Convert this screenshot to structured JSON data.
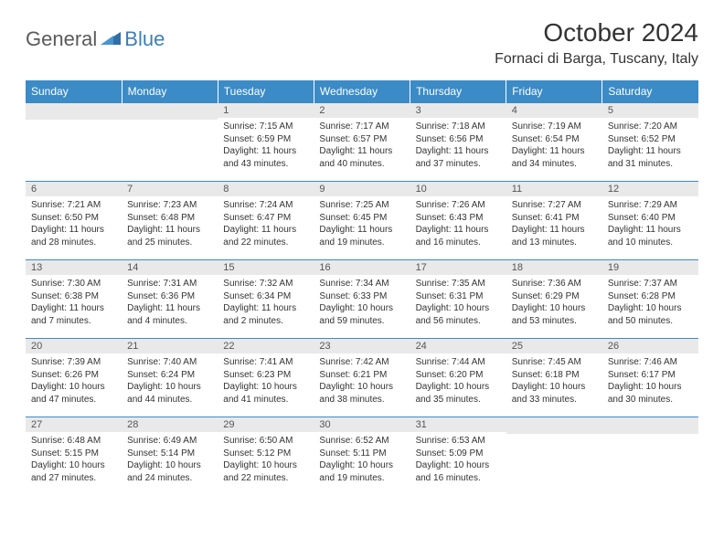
{
  "logo": {
    "part1": "General",
    "part2": "Blue"
  },
  "title": "October 2024",
  "location": "Fornaci di Barga, Tuscany, Italy",
  "colors": {
    "header_bg": "#3b8bc6",
    "header_text": "#ffffff",
    "daynum_bg": "#e9e9e9",
    "daynum_text": "#555555",
    "rule": "#3b8bc6",
    "logo_gray": "#5a5a5a",
    "logo_blue": "#3b7fb6"
  },
  "weekdays": [
    "Sunday",
    "Monday",
    "Tuesday",
    "Wednesday",
    "Thursday",
    "Friday",
    "Saturday"
  ],
  "weeks": [
    [
      null,
      null,
      {
        "n": "1",
        "sr": "Sunrise: 7:15 AM",
        "ss": "Sunset: 6:59 PM",
        "d1": "Daylight: 11 hours",
        "d2": "and 43 minutes."
      },
      {
        "n": "2",
        "sr": "Sunrise: 7:17 AM",
        "ss": "Sunset: 6:57 PM",
        "d1": "Daylight: 11 hours",
        "d2": "and 40 minutes."
      },
      {
        "n": "3",
        "sr": "Sunrise: 7:18 AM",
        "ss": "Sunset: 6:56 PM",
        "d1": "Daylight: 11 hours",
        "d2": "and 37 minutes."
      },
      {
        "n": "4",
        "sr": "Sunrise: 7:19 AM",
        "ss": "Sunset: 6:54 PM",
        "d1": "Daylight: 11 hours",
        "d2": "and 34 minutes."
      },
      {
        "n": "5",
        "sr": "Sunrise: 7:20 AM",
        "ss": "Sunset: 6:52 PM",
        "d1": "Daylight: 11 hours",
        "d2": "and 31 minutes."
      }
    ],
    [
      {
        "n": "6",
        "sr": "Sunrise: 7:21 AM",
        "ss": "Sunset: 6:50 PM",
        "d1": "Daylight: 11 hours",
        "d2": "and 28 minutes."
      },
      {
        "n": "7",
        "sr": "Sunrise: 7:23 AM",
        "ss": "Sunset: 6:48 PM",
        "d1": "Daylight: 11 hours",
        "d2": "and 25 minutes."
      },
      {
        "n": "8",
        "sr": "Sunrise: 7:24 AM",
        "ss": "Sunset: 6:47 PM",
        "d1": "Daylight: 11 hours",
        "d2": "and 22 minutes."
      },
      {
        "n": "9",
        "sr": "Sunrise: 7:25 AM",
        "ss": "Sunset: 6:45 PM",
        "d1": "Daylight: 11 hours",
        "d2": "and 19 minutes."
      },
      {
        "n": "10",
        "sr": "Sunrise: 7:26 AM",
        "ss": "Sunset: 6:43 PM",
        "d1": "Daylight: 11 hours",
        "d2": "and 16 minutes."
      },
      {
        "n": "11",
        "sr": "Sunrise: 7:27 AM",
        "ss": "Sunset: 6:41 PM",
        "d1": "Daylight: 11 hours",
        "d2": "and 13 minutes."
      },
      {
        "n": "12",
        "sr": "Sunrise: 7:29 AM",
        "ss": "Sunset: 6:40 PM",
        "d1": "Daylight: 11 hours",
        "d2": "and 10 minutes."
      }
    ],
    [
      {
        "n": "13",
        "sr": "Sunrise: 7:30 AM",
        "ss": "Sunset: 6:38 PM",
        "d1": "Daylight: 11 hours",
        "d2": "and 7 minutes."
      },
      {
        "n": "14",
        "sr": "Sunrise: 7:31 AM",
        "ss": "Sunset: 6:36 PM",
        "d1": "Daylight: 11 hours",
        "d2": "and 4 minutes."
      },
      {
        "n": "15",
        "sr": "Sunrise: 7:32 AM",
        "ss": "Sunset: 6:34 PM",
        "d1": "Daylight: 11 hours",
        "d2": "and 2 minutes."
      },
      {
        "n": "16",
        "sr": "Sunrise: 7:34 AM",
        "ss": "Sunset: 6:33 PM",
        "d1": "Daylight: 10 hours",
        "d2": "and 59 minutes."
      },
      {
        "n": "17",
        "sr": "Sunrise: 7:35 AM",
        "ss": "Sunset: 6:31 PM",
        "d1": "Daylight: 10 hours",
        "d2": "and 56 minutes."
      },
      {
        "n": "18",
        "sr": "Sunrise: 7:36 AM",
        "ss": "Sunset: 6:29 PM",
        "d1": "Daylight: 10 hours",
        "d2": "and 53 minutes."
      },
      {
        "n": "19",
        "sr": "Sunrise: 7:37 AM",
        "ss": "Sunset: 6:28 PM",
        "d1": "Daylight: 10 hours",
        "d2": "and 50 minutes."
      }
    ],
    [
      {
        "n": "20",
        "sr": "Sunrise: 7:39 AM",
        "ss": "Sunset: 6:26 PM",
        "d1": "Daylight: 10 hours",
        "d2": "and 47 minutes."
      },
      {
        "n": "21",
        "sr": "Sunrise: 7:40 AM",
        "ss": "Sunset: 6:24 PM",
        "d1": "Daylight: 10 hours",
        "d2": "and 44 minutes."
      },
      {
        "n": "22",
        "sr": "Sunrise: 7:41 AM",
        "ss": "Sunset: 6:23 PM",
        "d1": "Daylight: 10 hours",
        "d2": "and 41 minutes."
      },
      {
        "n": "23",
        "sr": "Sunrise: 7:42 AM",
        "ss": "Sunset: 6:21 PM",
        "d1": "Daylight: 10 hours",
        "d2": "and 38 minutes."
      },
      {
        "n": "24",
        "sr": "Sunrise: 7:44 AM",
        "ss": "Sunset: 6:20 PM",
        "d1": "Daylight: 10 hours",
        "d2": "and 35 minutes."
      },
      {
        "n": "25",
        "sr": "Sunrise: 7:45 AM",
        "ss": "Sunset: 6:18 PM",
        "d1": "Daylight: 10 hours",
        "d2": "and 33 minutes."
      },
      {
        "n": "26",
        "sr": "Sunrise: 7:46 AM",
        "ss": "Sunset: 6:17 PM",
        "d1": "Daylight: 10 hours",
        "d2": "and 30 minutes."
      }
    ],
    [
      {
        "n": "27",
        "sr": "Sunrise: 6:48 AM",
        "ss": "Sunset: 5:15 PM",
        "d1": "Daylight: 10 hours",
        "d2": "and 27 minutes."
      },
      {
        "n": "28",
        "sr": "Sunrise: 6:49 AM",
        "ss": "Sunset: 5:14 PM",
        "d1": "Daylight: 10 hours",
        "d2": "and 24 minutes."
      },
      {
        "n": "29",
        "sr": "Sunrise: 6:50 AM",
        "ss": "Sunset: 5:12 PM",
        "d1": "Daylight: 10 hours",
        "d2": "and 22 minutes."
      },
      {
        "n": "30",
        "sr": "Sunrise: 6:52 AM",
        "ss": "Sunset: 5:11 PM",
        "d1": "Daylight: 10 hours",
        "d2": "and 19 minutes."
      },
      {
        "n": "31",
        "sr": "Sunrise: 6:53 AM",
        "ss": "Sunset: 5:09 PM",
        "d1": "Daylight: 10 hours",
        "d2": "and 16 minutes."
      },
      null,
      null
    ]
  ]
}
